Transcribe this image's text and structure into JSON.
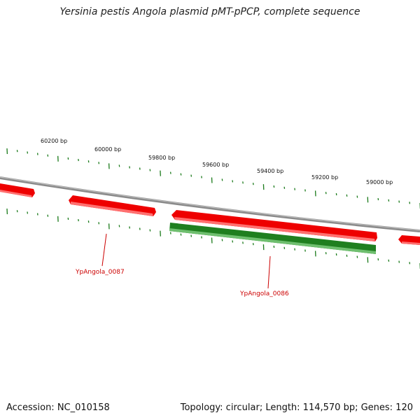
{
  "title": "Yersinia pestis Angola plasmid pMT-pPCP, complete sequence",
  "footer": {
    "accession": "Accession: NC_010158",
    "summary": "Topology: circular; Length: 114,570 bp; Genes: 120"
  },
  "colors": {
    "backbone": "#7a7a7a",
    "forward_gene": "#ee0000",
    "reverse_gene": "#1f7f1f",
    "ticks": "#1a7a1a",
    "gene_label": "#cc0000"
  },
  "ruler_labels": [
    "60200 bp",
    "60000 bp",
    "59800 bp",
    "59600 bp",
    "59400 bp",
    "59200 bp",
    "59000 bp"
  ],
  "genes": [
    {
      "label": "YpAngola_0087",
      "strand": "forward"
    },
    {
      "label": "YpAngola_0086",
      "strand": "reverse"
    }
  ]
}
